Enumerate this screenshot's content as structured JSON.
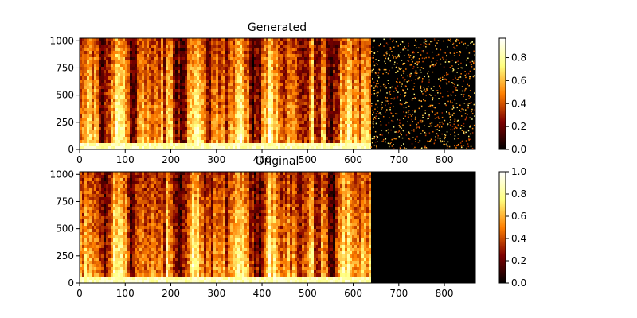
{
  "chart_data": [
    {
      "type": "heatmap",
      "title": "Generated",
      "xlabel": "",
      "ylabel": "",
      "xlim": [
        0,
        868
      ],
      "ylim": [
        0,
        1024
      ],
      "xticks": [
        0,
        100,
        200,
        300,
        400,
        500,
        600,
        700,
        800
      ],
      "yticks": [
        0,
        250,
        500,
        750,
        1000
      ],
      "content_end_x": 638,
      "colorbar": {
        "colormap": "afmhot",
        "range": [
          0,
          0.97
        ],
        "ticks": [
          "0.0",
          "0.2",
          "0.4",
          "0.6",
          "0.8"
        ]
      },
      "region_after_content": "sparse noise"
    },
    {
      "type": "heatmap",
      "title": "Original",
      "xlabel": "",
      "ylabel": "",
      "xlim": [
        0,
        868
      ],
      "ylim": [
        0,
        1024
      ],
      "xticks": [
        0,
        100,
        200,
        300,
        400,
        500,
        600,
        700,
        800
      ],
      "yticks": [
        0,
        250,
        500,
        750,
        1000
      ],
      "content_end_x": 638,
      "colorbar": {
        "colormap": "afmhot",
        "range": [
          0,
          1.0
        ],
        "ticks": [
          "0.0",
          "0.2",
          "0.4",
          "0.6",
          "0.8",
          "1.0"
        ]
      },
      "region_after_content": "zero"
    }
  ]
}
